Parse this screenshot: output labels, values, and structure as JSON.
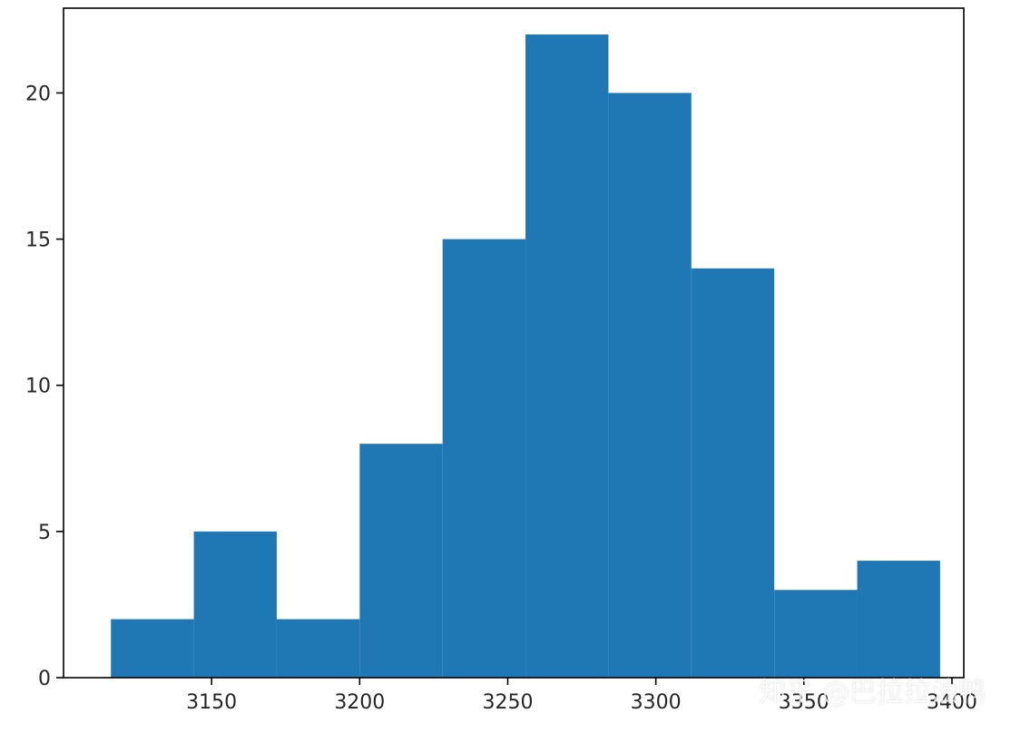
{
  "chart_data": {
    "type": "bar",
    "subtype": "histogram",
    "bin_edges": [
      3116,
      3144,
      3172,
      3200,
      3228,
      3256,
      3284,
      3312,
      3340,
      3368,
      3396
    ],
    "values": [
      2,
      5,
      2,
      8,
      15,
      22,
      20,
      14,
      3,
      4
    ],
    "xlim": [
      3100,
      3404
    ],
    "ylim": [
      0,
      22.9
    ],
    "xticks": [
      3150,
      3200,
      3250,
      3300,
      3350,
      3400
    ],
    "yticks": [
      0,
      5,
      10,
      15,
      20
    ],
    "title": "",
    "xlabel": "",
    "ylabel": "",
    "grid": false,
    "bar_color": "#1f77b4"
  },
  "watermark": "知乎 @巴拉拉油鸭"
}
